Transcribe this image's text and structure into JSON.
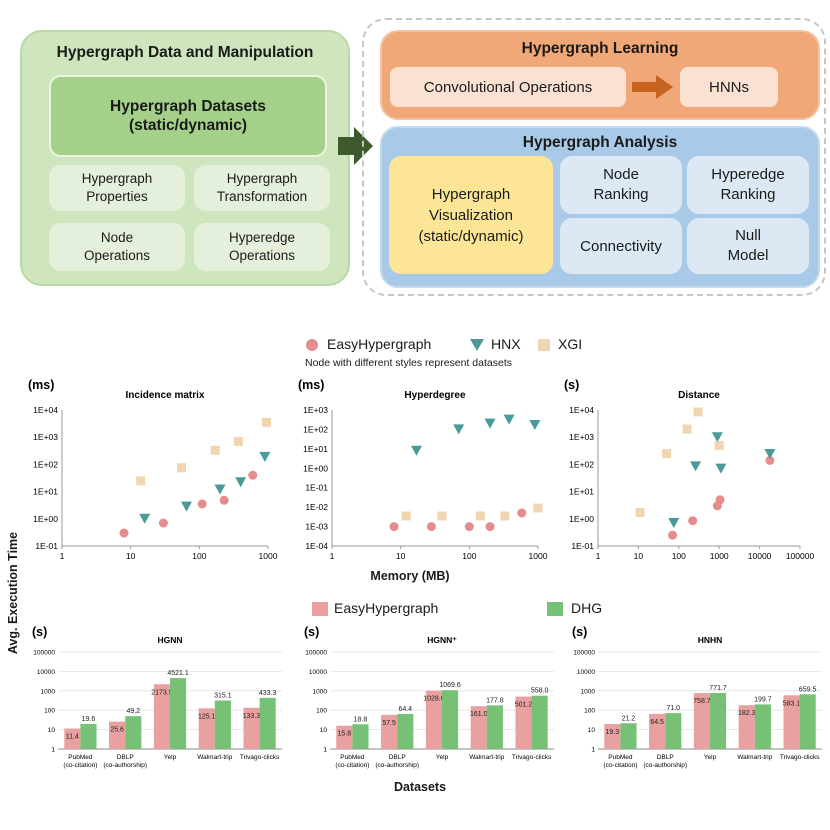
{
  "diagram": {
    "left_panel": {
      "title": "Hypergraph Data and Manipulation",
      "datasets": "Hypergraph Datasets\n(static/dynamic)",
      "items": [
        "Hypergraph\nProperties",
        "Hypergraph\nTransformation",
        "Node\nOperations",
        "Hyperedge\nOperations"
      ]
    },
    "learning": {
      "title": "Hypergraph Learning",
      "conv": "Convolutional Operations",
      "hnns": "HNNs"
    },
    "analysis": {
      "title": "Hypergraph Analysis",
      "viz": "Hypergraph\nVisualization\n(static/dynamic)",
      "items": [
        "Node\nRanking",
        "Hyperedge\nRanking",
        "Connectivity",
        "Null\nModel"
      ]
    },
    "colors": {
      "left_outer": "#cfe5bd",
      "left_header": "#a4d08a",
      "left_item": "#e5f0dc",
      "learn_outer": "#f0a878",
      "learn_item": "#fbe1d1",
      "arrow": "#c7621f",
      "analysis_outer": "#a9c9e8",
      "analysis_item": "#dce9f5",
      "viz": "#fce597",
      "big_arrow": "#3d5a2c"
    }
  },
  "legend1": {
    "items": [
      {
        "name": "EasyHypergraph",
        "color": "#e58d8d",
        "marker": "circle"
      },
      {
        "name": "HNX",
        "color": "#4a9a9a",
        "marker": "triangle-down"
      },
      {
        "name": "XGI",
        "color": "#f0d6b0",
        "marker": "square"
      }
    ],
    "note": "Node with different styles represent datasets"
  },
  "y_shared_label": "Avg. Execution Time",
  "x_shared_label_scatter": "Memory (MB)",
  "legend2": {
    "items": [
      {
        "name": "EasyHypergraph",
        "color": "#e9a0a0"
      },
      {
        "name": "DHG",
        "color": "#77c177"
      }
    ]
  },
  "x_shared_label_bar": "Datasets",
  "chart_data": [
    {
      "type": "scatter",
      "title": "Incidence matrix",
      "unit": "(ms)",
      "xscale": "log",
      "yscale": "log",
      "xlim": [
        1,
        1000
      ],
      "ylim": [
        0.1,
        10000
      ],
      "xticks": [
        "1",
        "10",
        "100",
        "1000"
      ],
      "yticks": [
        "1E-01",
        "1E+00",
        "1E+01",
        "1E+02",
        "1E+03",
        "1E+04"
      ],
      "series": [
        {
          "name": "EasyHypergraph",
          "points": [
            [
              8,
              0.3
            ],
            [
              30,
              0.7
            ],
            [
              110,
              3.5
            ],
            [
              230,
              4.8
            ],
            [
              600,
              40
            ]
          ]
        },
        {
          "name": "HNX",
          "points": [
            [
              16,
              1.0
            ],
            [
              65,
              2.8
            ],
            [
              200,
              12
            ],
            [
              400,
              22
            ],
            [
              900,
              190
            ]
          ]
        },
        {
          "name": "XGI",
          "points": [
            [
              14,
              25
            ],
            [
              55,
              75
            ],
            [
              170,
              330
            ],
            [
              370,
              700
            ],
            [
              950,
              3500
            ]
          ]
        }
      ]
    },
    {
      "type": "scatter",
      "title": "Hyperdegree",
      "unit": "(ms)",
      "xscale": "log",
      "yscale": "log",
      "xlim": [
        1,
        1000
      ],
      "ylim": [
        0.0001,
        1000
      ],
      "xticks": [
        "1",
        "10",
        "100",
        "1000"
      ],
      "yticks": [
        "1E-04",
        "1E-03",
        "1E-02",
        "1E-01",
        "1E+00",
        "1E+01",
        "1E+02",
        "1E+03"
      ],
      "series": [
        {
          "name": "EasyHypergraph",
          "points": [
            [
              8,
              0.001
            ],
            [
              28,
              0.001
            ],
            [
              100,
              0.001
            ],
            [
              200,
              0.001
            ],
            [
              580,
              0.005
            ]
          ]
        },
        {
          "name": "HNX",
          "points": [
            [
              17,
              8
            ],
            [
              70,
              100
            ],
            [
              200,
              200
            ],
            [
              380,
              320
            ],
            [
              900,
              170
            ]
          ]
        },
        {
          "name": "XGI",
          "points": [
            [
              12,
              0.0035
            ],
            [
              40,
              0.0035
            ],
            [
              145,
              0.0035
            ],
            [
              330,
              0.0035
            ],
            [
              1000,
              0.009
            ]
          ]
        }
      ]
    },
    {
      "type": "scatter",
      "title": "Distance",
      "unit": "(s)",
      "xscale": "log",
      "yscale": "log",
      "xlim": [
        1,
        100000
      ],
      "ylim": [
        0.1,
        10000
      ],
      "xticks": [
        "1",
        "10",
        "100",
        "1000",
        "10000",
        "100000"
      ],
      "yticks": [
        "1E-01",
        "1E+00",
        "1E+01",
        "1E+02",
        "1E+03",
        "1E+04"
      ],
      "series": [
        {
          "name": "EasyHypergraph",
          "points": [
            [
              70,
              0.25
            ],
            [
              220,
              0.85
            ],
            [
              900,
              3.0
            ],
            [
              1050,
              5.0
            ],
            [
              18000,
              140
            ]
          ]
        },
        {
          "name": "HNX",
          "points": [
            [
              75,
              0.7
            ],
            [
              260,
              85
            ],
            [
              900,
              1000
            ],
            [
              1100,
              70
            ],
            [
              18000,
              240
            ]
          ]
        },
        {
          "name": "XGI",
          "points": [
            [
              11,
              1.7
            ],
            [
              50,
              250
            ],
            [
              160,
              2000
            ],
            [
              300,
              8500
            ],
            [
              1000,
              500
            ]
          ]
        }
      ]
    },
    {
      "type": "bar",
      "title": "HGNN",
      "unit": "(s)",
      "yscale": "log",
      "ylim": [
        1,
        100000
      ],
      "yticks": [
        "1",
        "10",
        "100",
        "1000",
        "10000",
        "100000"
      ],
      "categories": [
        "PubMed\n(co-citation)",
        "DBLP\n(co-authorship)",
        "Yelp",
        "Walmart-trip",
        "Trivago-clicks"
      ],
      "series": [
        {
          "name": "EasyHypergraph",
          "values": [
            11.4,
            25.6,
            2173.9,
            125.1,
            133.3
          ]
        },
        {
          "name": "DHG",
          "values": [
            19.6,
            49.2,
            4521.1,
            315.1,
            433.3
          ]
        }
      ]
    },
    {
      "type": "bar",
      "title": "HGNN⁺",
      "unit": "(s)",
      "yscale": "log",
      "ylim": [
        1,
        100000
      ],
      "yticks": [
        "1",
        "10",
        "100",
        "1000",
        "10000",
        "100000"
      ],
      "categories": [
        "PubMed\n(co-citation)",
        "DBLP\n(co-authorship)",
        "Yelp",
        "Walmart-trip",
        "Trivago-clicks"
      ],
      "series": [
        {
          "name": "EasyHypergraph",
          "values": [
            15.8,
            57.5,
            1028.6,
            161.0,
            501.2
          ]
        },
        {
          "name": "DHG",
          "values": [
            18.8,
            64.4,
            1069.6,
            177.8,
            558.0
          ]
        }
      ]
    },
    {
      "type": "bar",
      "title": "HNHN",
      "unit": "(s)",
      "yscale": "log",
      "ylim": [
        1,
        100000
      ],
      "yticks": [
        "1",
        "10",
        "100",
        "1000",
        "10000",
        "100000"
      ],
      "categories": [
        "PubMed\n(co-citation)",
        "DBLP\n(co-authorship)",
        "Yelp",
        "Walmart-trip",
        "Trivago-clicks"
      ],
      "series": [
        {
          "name": "EasyHypergraph",
          "values": [
            19.3,
            64.5,
            758.7,
            182.3,
            583.1
          ]
        },
        {
          "name": "DHG",
          "values": [
            21.2,
            71.0,
            771.7,
            199.7,
            659.5
          ]
        }
      ]
    }
  ]
}
